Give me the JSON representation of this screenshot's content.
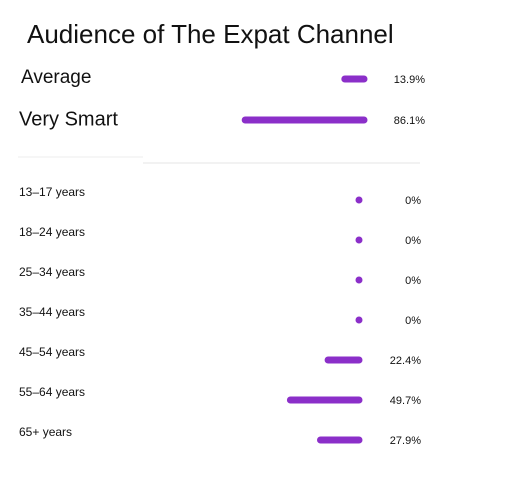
{
  "chart_data": [
    {
      "type": "bar",
      "title": "Audience of The Expat Channel",
      "orientation": "horizontal",
      "color": "#8b2fc9",
      "categories": [
        "Average",
        "Very Smart"
      ],
      "values": [
        13.9,
        86.1
      ],
      "value_labels": [
        "13.9%",
        "86.1%"
      ]
    },
    {
      "type": "bar",
      "orientation": "horizontal",
      "color": "#8b2fc9",
      "categories": [
        "13–17 years",
        "18–24 years",
        "25–34 years",
        "35–44 years",
        "45–54 years",
        "55–64 years",
        "65+ years"
      ],
      "values": [
        0,
        0,
        0,
        0,
        22.4,
        49.7,
        27.9
      ],
      "value_labels": [
        "0%",
        "0%",
        "0%",
        "0%",
        "22.4%",
        "49.7%",
        "27.9%"
      ]
    }
  ]
}
